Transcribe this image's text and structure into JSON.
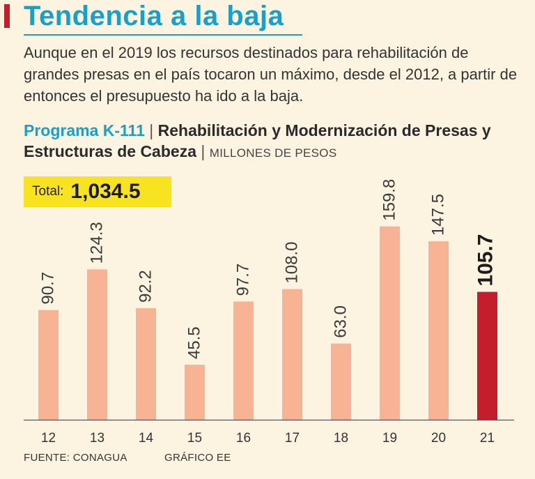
{
  "headline": "Tendencia a la baja",
  "intro": "Aunque en el 2019 los recursos destinados para rehabilitación de grandes presas en el país tocaron un máximo, desde el 2012, a partir de entonces el presupuesto ha ido a la baja.",
  "subtitle": {
    "program": "Programa K-111",
    "separator": "|",
    "description": "Rehabilitación y Modernización de Presas y Estructuras de Cabeza",
    "units": "MILLONES DE PESOS"
  },
  "total": {
    "label": "Total:",
    "value": "1,034.5"
  },
  "footer": {
    "source": "FUENTE: CONAGUA",
    "credit": "GRÁFICO EE"
  },
  "colors": {
    "bar": "#f7b393",
    "highlight": "#c41e2d",
    "accent": "#1aa0c8",
    "total_bg": "#f8e320"
  },
  "chart_data": {
    "type": "bar",
    "title": "Rehabilitación y Modernización de Presas y Estructuras de Cabeza",
    "ylabel": "MILLONES DE PESOS",
    "categories": [
      "12",
      "13",
      "14",
      "15",
      "16",
      "17",
      "18",
      "19",
      "20",
      "21"
    ],
    "values": [
      90.7,
      124.3,
      92.2,
      45.5,
      97.7,
      108.0,
      63.0,
      159.8,
      147.5,
      105.7
    ],
    "labels": [
      "90.7",
      "124.3",
      "92.2",
      "45.5",
      "97.7",
      "108.0",
      "63.0",
      "159.8",
      "147.5",
      "105.7"
    ],
    "highlight_index": 9,
    "ylim": [
      0,
      160
    ]
  }
}
